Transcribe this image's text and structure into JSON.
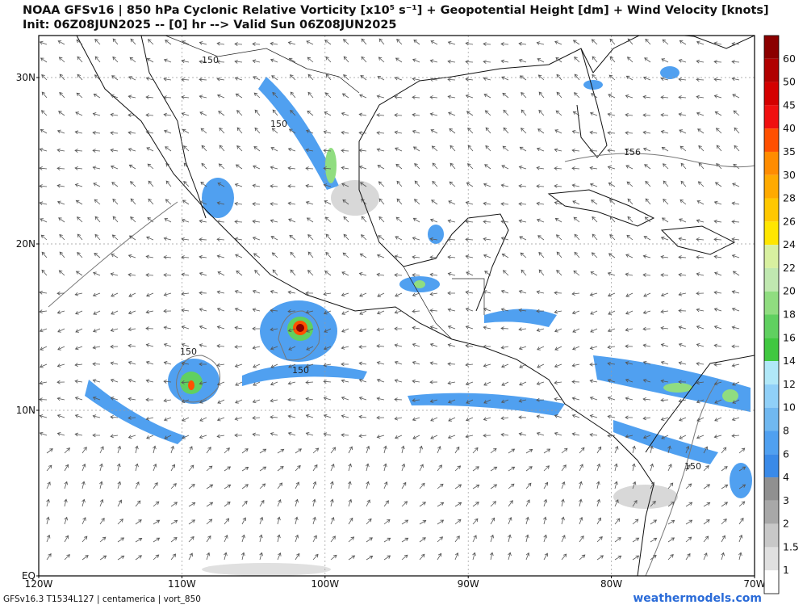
{
  "header": {
    "title": "NOAA GFSv16 | 850 hPa Cyclonic Relative Vorticity [x10⁵ s⁻¹] + Geopotential Height [dm] + Wind Velocity [knots]",
    "subtitle": "Init: 06Z08JUN2025 -- [0] hr --> Valid Sun 06Z08JUN2025"
  },
  "map": {
    "lat_labels": [
      "30N",
      "20N",
      "10N",
      "EQ"
    ],
    "lon_labels": [
      "120W",
      "110W",
      "100W",
      "90W",
      "80W",
      "70W"
    ],
    "contour_labels": [
      "150",
      "150",
      "150",
      "150",
      "156",
      "150"
    ]
  },
  "colorbar": {
    "labels": [
      "60",
      "50",
      "45",
      "40",
      "35",
      "30",
      "28",
      "26",
      "24",
      "22",
      "20",
      "18",
      "16",
      "14",
      "12",
      "10",
      "8",
      "6",
      "4",
      "3",
      "2",
      "1.5",
      "1"
    ]
  },
  "footer": {
    "model": "GFSv16.3 T1534L127 | centamerica | vort_850",
    "site": "weathermodels.com"
  }
}
